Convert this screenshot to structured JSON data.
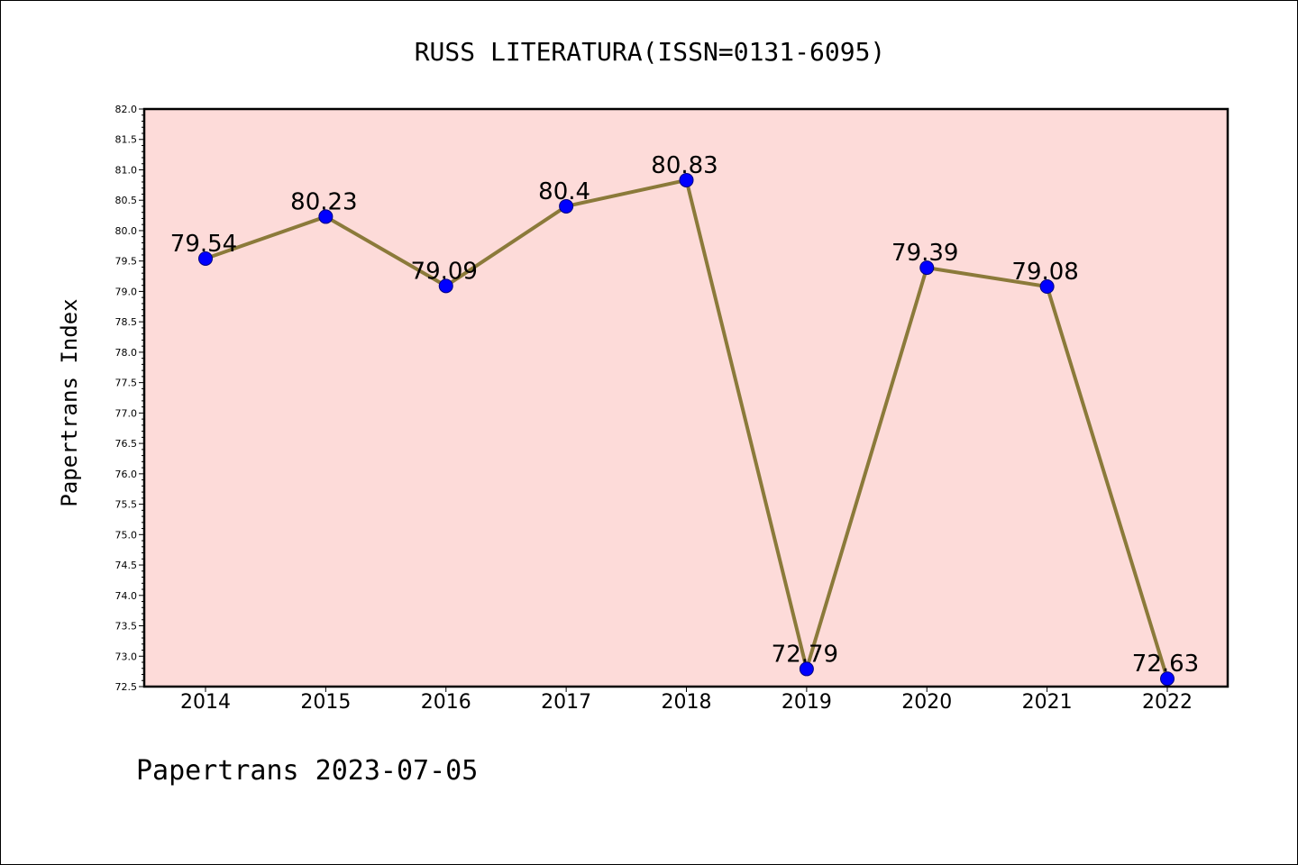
{
  "footer": "Papertrans 2023-07-05",
  "colors": {
    "plot_background": "#fddbd9",
    "line": "#8b7a3a",
    "marker": "#0000ff",
    "marker_edge": "#000080",
    "axes": "#000000"
  },
  "chart_data": {
    "type": "line",
    "title": "RUSS LITERATURA(ISSN=0131-6095)",
    "xlabel": "",
    "ylabel": "Papertrans Index",
    "categories": [
      "2014",
      "2015",
      "2016",
      "2017",
      "2018",
      "2019",
      "2020",
      "2021",
      "2022"
    ],
    "series": [
      {
        "values": [
          79.54,
          80.23,
          79.09,
          80.4,
          80.83,
          72.79,
          79.39,
          79.08,
          72.63
        ],
        "labels": [
          "79.54",
          "80.23",
          "79.09",
          "80.4",
          "80.83",
          "72.79",
          "79.39",
          "79.08",
          "72.63"
        ]
      }
    ],
    "ylim": [
      72.5,
      82.0
    ],
    "yticks": [
      "72.5",
      "73.0",
      "73.5",
      "74.0",
      "74.5",
      "75.0",
      "75.5",
      "76.0",
      "76.5",
      "77.0",
      "77.5",
      "78.0",
      "78.5",
      "79.0",
      "79.5",
      "80.0",
      "80.5",
      "81.0",
      "81.5",
      "82.0"
    ],
    "grid": false,
    "legend": "none"
  }
}
